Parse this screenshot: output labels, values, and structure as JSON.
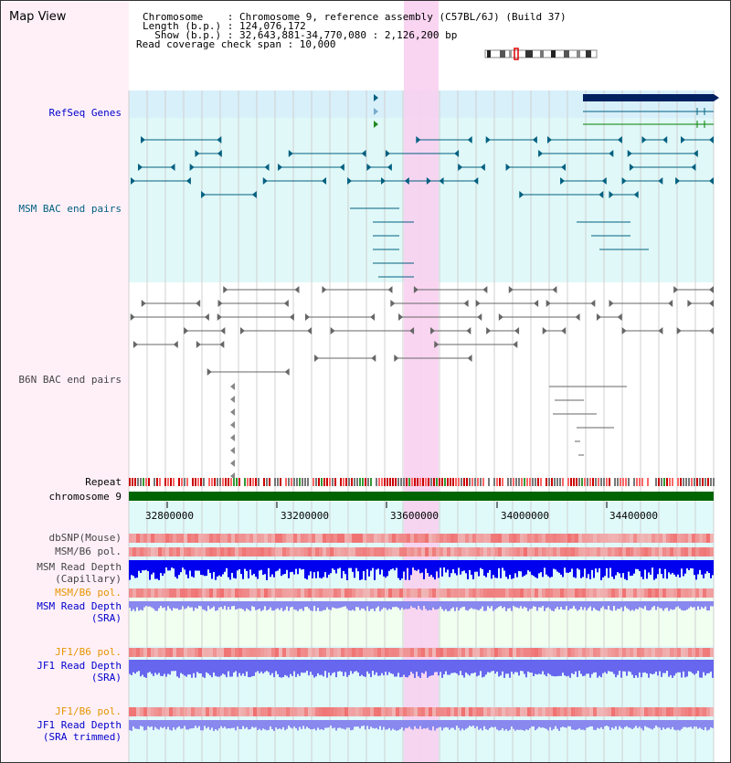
{
  "header": {
    "title": "Map View",
    "info_lines": [
      "Chromosome    : Chromosome 9, reference assembly (C57BL/6J) (Build 37)",
      "Length (b.p.) : 124,076,172",
      "  Show (b.p.) : 32,643,881-34,770,080 : 2,126,200 bp",
      "Read coverage check span : 10,000"
    ]
  },
  "tracks": {
    "refseq": "RefSeq Genes",
    "msm_bac": "MSM BAC end pairs",
    "b6n_bac": "B6N BAC end pairs",
    "repeat": "Repeat",
    "chromosome": "chromosome 9",
    "dbsnp": "dbSNP(Mouse)",
    "msm_b6_pol": "MSM/B6 pol.",
    "msm_depth_cap_1": "MSM Read Depth",
    "msm_depth_cap_2": "(Capillary)",
    "msm_b6_pol2": "MSM/B6 pol.",
    "msm_depth_sra_1": "MSM Read Depth",
    "msm_depth_sra_2": "(SRA)",
    "jf1_b6_pol": "JF1/B6 pol.",
    "jf1_depth_sra_1": "JF1 Read Depth",
    "jf1_depth_sra_2": "(SRA)",
    "jf1_b6_pol2": "JF1/B6 pol.",
    "jf1_depth_trim_1": "JF1 Read Depth",
    "jf1_depth_trim_2": "(SRA trimmed)"
  },
  "axis": {
    "ticks": [
      "32800000",
      "33200000",
      "33600000",
      "34000000",
      "34400000"
    ]
  },
  "colors": {
    "refseq_label": "#0000cc",
    "msm_label": "#006080",
    "b6n_label": "#444444",
    "pol_label": "#e69500",
    "depth_label": "#0000cc",
    "highlight": "#f8d0f0",
    "chromosome_bar": "#006400"
  }
}
